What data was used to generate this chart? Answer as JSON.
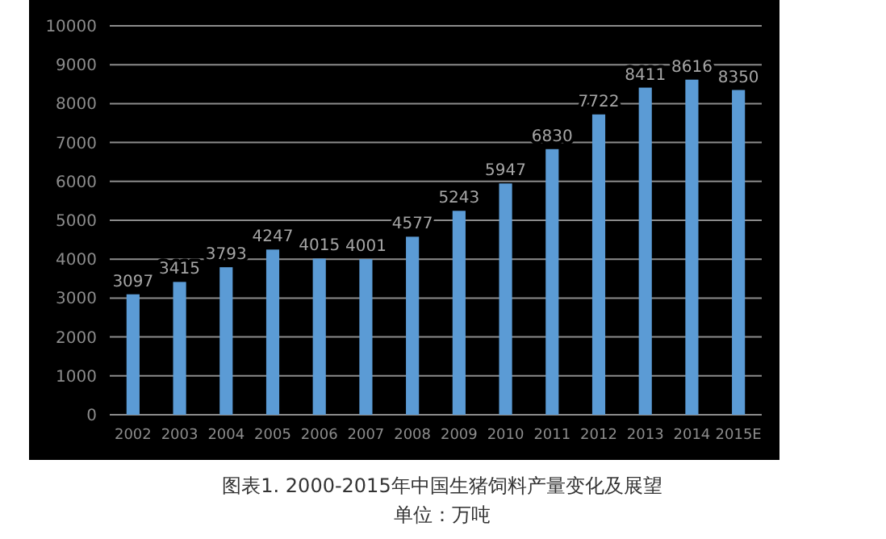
{
  "chart_data": {
    "type": "bar",
    "title": "图表1. 2000-2015年中国生猪饲料产量变化及展望",
    "categories": [
      "2002",
      "2003",
      "2004",
      "2005",
      "2006",
      "2007",
      "2008",
      "2009",
      "2010",
      "2011",
      "2012",
      "2013",
      "2014",
      "2015E"
    ],
    "values": [
      3097,
      3415,
      3793,
      4247,
      4015,
      4001,
      4577,
      5243,
      5947,
      6830,
      7722,
      8411,
      8616,
      8350
    ],
    "color": "#5b9bd5",
    "ylim": [
      0,
      10000
    ],
    "yticks": [
      0,
      1000,
      2000,
      3000,
      4000,
      5000,
      6000,
      7000,
      8000,
      9000,
      10000
    ],
    "grid": "y",
    "data_labels": true,
    "annotations": [
      "单位：万吨"
    ]
  }
}
